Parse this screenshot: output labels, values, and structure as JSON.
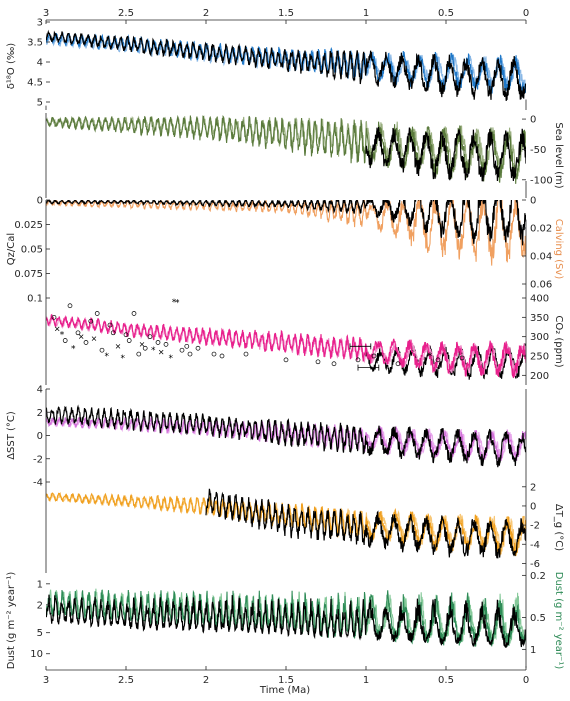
{
  "figure": {
    "x_axis": {
      "label": "Time (Ma)",
      "range": [
        3,
        0
      ],
      "ticks": [
        3,
        2.5,
        2,
        1.5,
        1,
        0.5,
        0
      ],
      "tick_labels": [
        "3",
        "2.5",
        "2",
        "1.5",
        "1",
        "0.5",
        "0"
      ]
    }
  },
  "chart_data": [
    {
      "type": "line",
      "panel": "d18O",
      "ylabel": "δ¹⁸O (‰)",
      "ylabel_side": "left",
      "ylim": [
        3,
        5.2
      ],
      "inverted": true,
      "yticks": [
        3,
        3.5,
        4,
        4.5,
        5
      ],
      "ytick_labels": [
        "3",
        "3.5",
        "4",
        "4.5",
        "5"
      ],
      "series": [
        {
          "color": "#000000",
          "x": [
            3,
            2.5,
            2,
            1.5,
            1,
            0.5,
            0
          ],
          "mean": [
            3.35,
            3.55,
            3.75,
            3.95,
            4.15,
            4.35,
            4.45
          ],
          "amp": [
            0.15,
            0.2,
            0.25,
            0.3,
            0.45,
            0.55,
            0.6
          ]
        },
        {
          "color": "#1f78c8",
          "x": [
            3,
            2.5,
            2,
            1.5,
            1,
            0.5,
            0
          ],
          "mean": [
            3.4,
            3.55,
            3.75,
            3.9,
            4.1,
            4.25,
            4.35
          ],
          "amp": [
            0.15,
            0.2,
            0.25,
            0.3,
            0.4,
            0.5,
            0.55
          ]
        },
        {
          "color": "#8ab8e6",
          "x": [
            3,
            2.5,
            2,
            1.5,
            1,
            0.5,
            0
          ],
          "mean": [
            3.45,
            3.6,
            3.8,
            3.95,
            4.1,
            4.2,
            4.3
          ],
          "amp": [
            0.12,
            0.18,
            0.22,
            0.28,
            0.35,
            0.42,
            0.45
          ]
        }
      ]
    },
    {
      "type": "line",
      "panel": "sea_level",
      "ylabel": "Sea level (m)",
      "ylabel_side": "right",
      "ylim": [
        -130,
        10
      ],
      "inverted": false,
      "yticks": [
        0,
        -50,
        -100
      ],
      "ytick_labels": [
        "0",
        "-50",
        "-100"
      ],
      "series": [
        {
          "color": "#000000",
          "x": [
            1,
            0.5,
            0
          ],
          "mean": [
            -45,
            -60,
            -65
          ],
          "amp": [
            35,
            45,
            50
          ]
        },
        {
          "color": "#5a7a3c",
          "x": [
            3,
            2.5,
            2,
            1.5,
            1,
            0.5,
            0
          ],
          "mean": [
            -5,
            -10,
            -15,
            -25,
            -40,
            -55,
            -60
          ],
          "amp": [
            8,
            15,
            22,
            30,
            40,
            45,
            48
          ]
        },
        {
          "color": "#9aaf80",
          "x": [
            3,
            2.5,
            2,
            1.5,
            1,
            0.5,
            0
          ],
          "mean": [
            -4,
            -8,
            -13,
            -22,
            -35,
            -50,
            -55
          ],
          "amp": [
            6,
            12,
            18,
            25,
            35,
            40,
            42
          ]
        }
      ]
    },
    {
      "type": "line",
      "panel": "qz_cal_calving",
      "ylabel": "Qz/Cal",
      "ylabel_side": "left",
      "ylim": [
        0,
        0.1
      ],
      "inverted": true,
      "yticks": [
        0,
        0.025,
        0.05,
        0.075,
        0.1
      ],
      "ytick_labels": [
        "0",
        "0.025",
        "0.05",
        "0.075",
        "0.1"
      ],
      "ylabel_right": "Calving (Sv)",
      "ylim_right": [
        0,
        0.07
      ],
      "yticks_right": [
        0,
        0.02,
        0.04,
        0.06
      ],
      "ytick_labels_right": [
        "0",
        "0.02",
        "0.04",
        "0.06"
      ],
      "series": [
        {
          "color": "#000000",
          "axis": "left",
          "x": [
            3,
            2.5,
            2,
            1.5,
            1,
            0.5,
            0
          ],
          "mean": [
            0.002,
            0.002,
            0.003,
            0.004,
            0.006,
            0.012,
            0.015
          ],
          "amp": [
            0.002,
            0.002,
            0.003,
            0.004,
            0.01,
            0.03,
            0.035
          ]
        },
        {
          "color": "#f0a060",
          "axis": "right",
          "x": [
            3,
            2.5,
            2,
            1.5,
            1,
            0.5,
            0
          ],
          "mean": [
            0.002,
            0.003,
            0.004,
            0.005,
            0.01,
            0.018,
            0.02
          ],
          "amp": [
            0.002,
            0.003,
            0.004,
            0.005,
            0.012,
            0.025,
            0.03
          ]
        }
      ]
    },
    {
      "type": "line",
      "panel": "co2",
      "ylabel": "CO₂ (ppm)",
      "ylabel_side": "right",
      "ylim": [
        175,
        400
      ],
      "inverted": false,
      "yticks": [
        200,
        250,
        300,
        350,
        400
      ],
      "ytick_labels": [
        "200",
        "250",
        "300",
        "350",
        "400"
      ],
      "series": [
        {
          "color": "#e8208c",
          "x": [
            3,
            2.5,
            2,
            1.5,
            1,
            0.5,
            0
          ],
          "mean": [
            345,
            320,
            300,
            285,
            265,
            245,
            240
          ],
          "amp": [
            15,
            20,
            25,
            30,
            35,
            45,
            50
          ]
        },
        {
          "color": "#f08cc8",
          "x": [
            3,
            2.5,
            2,
            1.5,
            1,
            0.5,
            0
          ],
          "mean": [
            340,
            318,
            298,
            282,
            262,
            245,
            240
          ],
          "amp": [
            12,
            18,
            22,
            25,
            30,
            40,
            45
          ]
        },
        {
          "color": "#000000",
          "x": [
            1,
            0.5,
            0
          ],
          "mean": [
            240,
            235,
            235
          ],
          "amp": [
            35,
            45,
            50
          ]
        }
      ],
      "proxy_points": [
        {
          "x": 2.95,
          "y": 350,
          "m": "o"
        },
        {
          "x": 2.93,
          "y": 320,
          "m": "x"
        },
        {
          "x": 2.9,
          "y": 305,
          "m": "*"
        },
        {
          "x": 2.88,
          "y": 290,
          "m": "o"
        },
        {
          "x": 2.85,
          "y": 380,
          "m": "o"
        },
        {
          "x": 2.83,
          "y": 270,
          "m": "*"
        },
        {
          "x": 2.8,
          "y": 310,
          "m": "o"
        },
        {
          "x": 2.78,
          "y": 300,
          "m": "x"
        },
        {
          "x": 2.75,
          "y": 285,
          "m": "o"
        },
        {
          "x": 2.72,
          "y": 340,
          "m": "o"
        },
        {
          "x": 2.7,
          "y": 295,
          "m": "x"
        },
        {
          "x": 2.68,
          "y": 360,
          "m": "o"
        },
        {
          "x": 2.65,
          "y": 265,
          "m": "o"
        },
        {
          "x": 2.62,
          "y": 250,
          "m": "*"
        },
        {
          "x": 2.6,
          "y": 330,
          "m": "o"
        },
        {
          "x": 2.58,
          "y": 310,
          "m": "o"
        },
        {
          "x": 2.55,
          "y": 275,
          "m": "x"
        },
        {
          "x": 2.52,
          "y": 245,
          "m": "*"
        },
        {
          "x": 2.5,
          "y": 305,
          "m": "o"
        },
        {
          "x": 2.48,
          "y": 290,
          "m": "o"
        },
        {
          "x": 2.45,
          "y": 360,
          "m": "o"
        },
        {
          "x": 2.42,
          "y": 255,
          "m": "o"
        },
        {
          "x": 2.4,
          "y": 280,
          "m": "x"
        },
        {
          "x": 2.38,
          "y": 270,
          "m": "o"
        },
        {
          "x": 2.35,
          "y": 300,
          "m": "o"
        },
        {
          "x": 2.33,
          "y": 265,
          "m": "*"
        },
        {
          "x": 2.3,
          "y": 285,
          "m": "o"
        },
        {
          "x": 2.28,
          "y": 260,
          "m": "x"
        },
        {
          "x": 2.25,
          "y": 280,
          "m": "o"
        },
        {
          "x": 2.22,
          "y": 245,
          "m": "*"
        },
        {
          "x": 2.2,
          "y": 390,
          "m": "*"
        },
        {
          "x": 2.18,
          "y": 388,
          "m": "*"
        },
        {
          "x": 2.15,
          "y": 265,
          "m": "o"
        },
        {
          "x": 2.12,
          "y": 275,
          "m": "o"
        },
        {
          "x": 2.1,
          "y": 255,
          "m": "o"
        },
        {
          "x": 2.05,
          "y": 270,
          "m": "o"
        },
        {
          "x": 1.95,
          "y": 255,
          "m": "o"
        },
        {
          "x": 1.9,
          "y": 250,
          "m": "o"
        },
        {
          "x": 1.75,
          "y": 255,
          "m": "o"
        },
        {
          "x": 1.5,
          "y": 240,
          "m": "o"
        },
        {
          "x": 1.3,
          "y": 235,
          "m": "o"
        },
        {
          "x": 1.2,
          "y": 230,
          "m": "o"
        },
        {
          "x": 1.05,
          "y": 240,
          "m": "o"
        },
        {
          "x": 0.95,
          "y": 250,
          "m": "o"
        },
        {
          "x": 0.8,
          "y": 230,
          "m": "o"
        },
        {
          "x": 0.6,
          "y": 250,
          "m": "*"
        },
        {
          "x": 0.55,
          "y": 240,
          "m": "o"
        },
        {
          "x": 0.4,
          "y": 245,
          "m": "o"
        }
      ],
      "error_bars": [
        {
          "x": [
            1.1,
            0.97
          ],
          "y": 275
        },
        {
          "x": [
            1.05,
            0.92
          ],
          "y": 220
        }
      ]
    },
    {
      "type": "line",
      "panel": "sst",
      "ylabel": "ΔSST (°C)",
      "ylabel_side": "left",
      "ylim": [
        -4,
        4
      ],
      "inverted": false,
      "yticks": [
        -4,
        -2,
        0,
        2,
        4
      ],
      "ytick_labels": [
        "-4",
        "-2",
        "0",
        "2",
        "4"
      ],
      "series": [
        {
          "color": "#000000",
          "x": [
            3,
            2.5,
            2,
            1.5,
            1,
            0.5,
            0
          ],
          "mean": [
            1.8,
            1.4,
            0.9,
            0.2,
            -0.4,
            -0.9,
            -1.2
          ],
          "amp": [
            0.8,
            1.0,
            1.0,
            1.2,
            1.4,
            1.6,
            1.7
          ]
        },
        {
          "color": "#d070d8",
          "x": [
            3,
            2.5,
            2,
            1.5,
            1,
            0.5,
            0
          ],
          "mean": [
            1.2,
            1.0,
            0.7,
            0.2,
            -0.3,
            -0.8,
            -1.0
          ],
          "amp": [
            0.4,
            0.6,
            0.8,
            1.0,
            1.2,
            1.4,
            1.5
          ]
        },
        {
          "color": "#e8a8ec",
          "x": [
            3,
            2.5,
            2,
            1.5,
            1,
            0.5,
            0
          ],
          "mean": [
            1.1,
            0.9,
            0.6,
            0.1,
            -0.3,
            -0.7,
            -0.9
          ],
          "amp": [
            0.3,
            0.5,
            0.7,
            0.9,
            1.1,
            1.3,
            1.4
          ]
        }
      ]
    },
    {
      "type": "line",
      "panel": "tg",
      "ylabel": "ΔT_g (°C)",
      "ylabel_side": "right",
      "ylim": [
        -7,
        2.5
      ],
      "inverted": false,
      "yticks": [
        2,
        0,
        -2,
        -4,
        -6
      ],
      "ytick_labels": [
        "2",
        "0",
        "-2",
        "-4",
        "-6"
      ],
      "series": [
        {
          "color": "#000000",
          "x": [
            2,
            1.5,
            1,
            0.5,
            0
          ],
          "mean": [
            0.5,
            -1.5,
            -2.5,
            -3.2,
            -3.5
          ],
          "amp": [
            1.5,
            1.8,
            2.0,
            2.2,
            2.4
          ]
        },
        {
          "color": "#f0a020",
          "x": [
            3,
            2.5,
            2,
            1.5,
            1,
            0.5,
            0
          ],
          "mean": [
            1.0,
            0.5,
            0.0,
            -1.0,
            -2.0,
            -2.8,
            -3.2
          ],
          "amp": [
            0.4,
            0.7,
            1.0,
            1.4,
            1.8,
            2.1,
            2.3
          ]
        },
        {
          "color": "#f8c878",
          "x": [
            3,
            2.5,
            2,
            1.5,
            1,
            0.5,
            0
          ],
          "mean": [
            0.9,
            0.4,
            -0.1,
            -1.0,
            -1.9,
            -2.6,
            -3.0
          ],
          "amp": [
            0.3,
            0.6,
            0.9,
            1.2,
            1.6,
            1.9,
            2.1
          ]
        }
      ]
    },
    {
      "type": "line",
      "panel": "dust",
      "ylabel": "Dust (g m⁻² year⁻¹)",
      "ylabel_side": "left",
      "ylim": [
        16,
        0.7
      ],
      "log_scale": true,
      "inverted": true,
      "yticks": [
        1,
        2,
        5,
        10
      ],
      "ytick_labels": [
        "1",
        "2",
        "5",
        "10"
      ],
      "ylabel_right": "Dust (g m⁻² year⁻¹)",
      "ylim_right": [
        1.5,
        0.19
      ],
      "yticks_right": [
        0.2,
        0.5,
        1
      ],
      "ytick_labels_right": [
        "0.2",
        "0.5",
        "1"
      ],
      "series": [
        {
          "color": "#000000",
          "axis": "left",
          "x": [
            3,
            2.5,
            2,
            1.5,
            1,
            0.5,
            0
          ],
          "mean": [
            2.5,
            3.0,
            3.2,
            3.5,
            4.0,
            4.5,
            5.0
          ],
          "amp": [
            1.2,
            1.5,
            1.8,
            2.0,
            2.5,
            3.0,
            3.5
          ]
        },
        {
          "color": "#2e8b57",
          "axis": "right",
          "x": [
            3,
            2.5,
            2,
            1.5,
            1,
            0.5,
            0
          ],
          "mean": [
            0.38,
            0.42,
            0.45,
            0.5,
            0.55,
            0.6,
            0.62
          ],
          "amp": [
            0.12,
            0.15,
            0.18,
            0.22,
            0.28,
            0.32,
            0.35
          ]
        },
        {
          "color": "#86c99a",
          "axis": "right",
          "x": [
            3,
            2.5,
            2,
            1.5,
            1,
            0.5,
            0
          ],
          "mean": [
            0.36,
            0.4,
            0.43,
            0.48,
            0.52,
            0.58,
            0.6
          ],
          "amp": [
            0.1,
            0.13,
            0.16,
            0.2,
            0.25,
            0.3,
            0.32
          ]
        }
      ]
    }
  ]
}
